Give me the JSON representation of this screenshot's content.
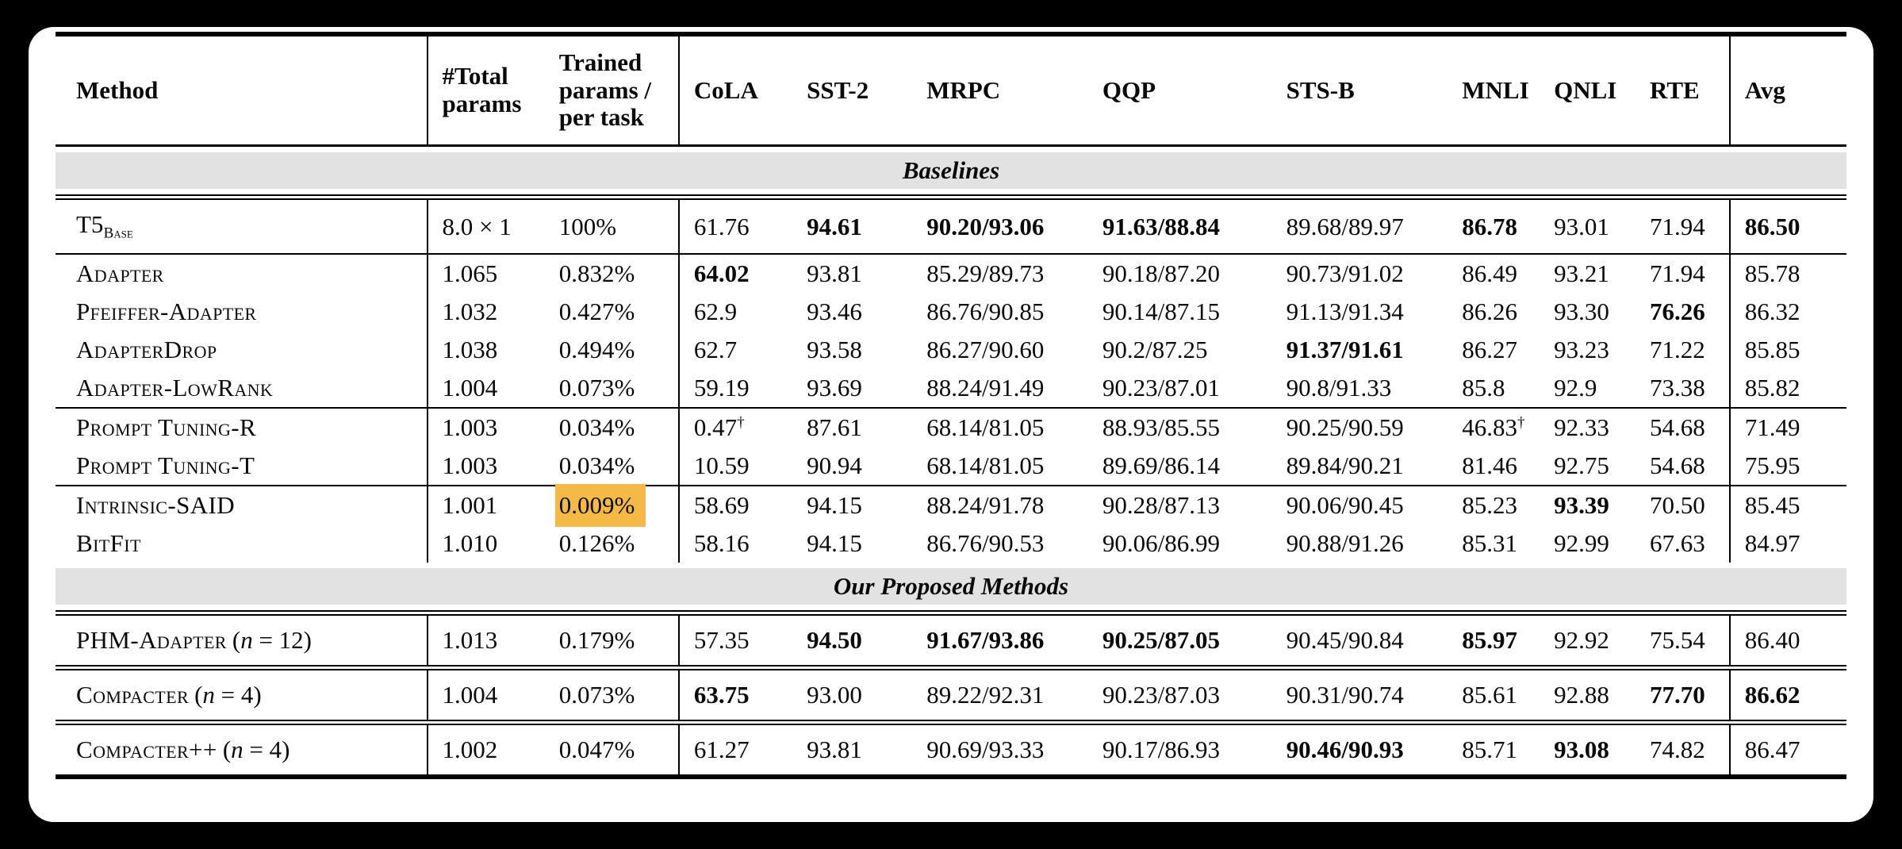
{
  "colors": {
    "highlight": "#F5BA45",
    "band_bg": "#E2E2E2",
    "text": "#0A0A0A",
    "card_bg": "#FFFFFF",
    "page_bg": "#000000"
  },
  "table": {
    "columns": [
      {
        "label": "Method"
      },
      {
        "label": "#Total\nparams"
      },
      {
        "label": "Trained\nparams /\nper task"
      },
      {
        "label": "CoLA"
      },
      {
        "label": "SST-2"
      },
      {
        "label": "MRPC"
      },
      {
        "label": "QQP"
      },
      {
        "label": "STS-B"
      },
      {
        "label": "MNLI"
      },
      {
        "label": "QNLI"
      },
      {
        "label": "RTE"
      },
      {
        "label": "Avg"
      }
    ],
    "sections": [
      {
        "band": "Baselines",
        "groups": [
          {
            "rows": [
              {
                "method": {
                  "text": "T5",
                  "sub": "Base"
                },
                "total_params": "8.0 × 1",
                "trained_params": "100%",
                "cells": [
                  {
                    "t": "61.76"
                  },
                  {
                    "t": "94.61",
                    "b": true
                  },
                  {
                    "t": "90.20/93.06",
                    "b": true
                  },
                  {
                    "t": "91.63/88.84",
                    "b": true
                  },
                  {
                    "t": "89.68/89.97"
                  },
                  {
                    "t": "86.78",
                    "b": true
                  },
                  {
                    "t": "93.01"
                  },
                  {
                    "t": "71.94"
                  },
                  {
                    "t": "86.50",
                    "b": true
                  }
                ]
              }
            ]
          },
          {
            "rows": [
              {
                "method": {
                  "text": "Adapter",
                  "sc": true
                },
                "total_params": "1.065",
                "trained_params": "0.832%",
                "cells": [
                  {
                    "t": "64.02",
                    "b": true
                  },
                  {
                    "t": "93.81"
                  },
                  {
                    "t": "85.29/89.73"
                  },
                  {
                    "t": "90.18/87.20"
                  },
                  {
                    "t": "90.73/91.02"
                  },
                  {
                    "t": "86.49"
                  },
                  {
                    "t": "93.21"
                  },
                  {
                    "t": "71.94"
                  },
                  {
                    "t": "85.78"
                  }
                ]
              },
              {
                "method": {
                  "text": "Pfeiffer-Adapter",
                  "sc": true
                },
                "total_params": "1.032",
                "trained_params": "0.427%",
                "cells": [
                  {
                    "t": "62.9"
                  },
                  {
                    "t": "93.46"
                  },
                  {
                    "t": "86.76/90.85"
                  },
                  {
                    "t": "90.14/87.15"
                  },
                  {
                    "t": "91.13/91.34"
                  },
                  {
                    "t": "86.26"
                  },
                  {
                    "t": "93.30"
                  },
                  {
                    "t": "76.26",
                    "b": true
                  },
                  {
                    "t": "86.32"
                  }
                ]
              },
              {
                "method": {
                  "text": "AdapterDrop",
                  "sc": true
                },
                "total_params": "1.038",
                "trained_params": "0.494%",
                "cells": [
                  {
                    "t": "62.7"
                  },
                  {
                    "t": "93.58"
                  },
                  {
                    "t": "86.27/90.60"
                  },
                  {
                    "t": "90.2/87.25"
                  },
                  {
                    "t": "91.37/91.61",
                    "b": true
                  },
                  {
                    "t": "86.27"
                  },
                  {
                    "t": "93.23"
                  },
                  {
                    "t": "71.22"
                  },
                  {
                    "t": "85.85"
                  }
                ]
              },
              {
                "method": {
                  "text": "Adapter-LowRank",
                  "sc": true
                },
                "total_params": "1.004",
                "trained_params": "0.073%",
                "cells": [
                  {
                    "t": "59.19"
                  },
                  {
                    "t": "93.69"
                  },
                  {
                    "t": "88.24/91.49"
                  },
                  {
                    "t": "90.23/87.01"
                  },
                  {
                    "t": "90.8/91.33"
                  },
                  {
                    "t": "85.8"
                  },
                  {
                    "t": "92.9"
                  },
                  {
                    "t": "73.38"
                  },
                  {
                    "t": "85.82"
                  }
                ]
              }
            ]
          },
          {
            "rows": [
              {
                "method": {
                  "text": "Prompt Tuning-R",
                  "sc": true
                },
                "total_params": "1.003",
                "trained_params": "0.034%",
                "cells": [
                  {
                    "t": "0.47",
                    "sup": "†"
                  },
                  {
                    "t": "87.61"
                  },
                  {
                    "t": "68.14/81.05"
                  },
                  {
                    "t": "88.93/85.55"
                  },
                  {
                    "t": "90.25/90.59"
                  },
                  {
                    "t": "46.83",
                    "sup": "†"
                  },
                  {
                    "t": "92.33"
                  },
                  {
                    "t": "54.68"
                  },
                  {
                    "t": "71.49"
                  }
                ]
              },
              {
                "method": {
                  "text": "Prompt Tuning-T",
                  "sc": true
                },
                "total_params": "1.003",
                "trained_params": "0.034%",
                "cells": [
                  {
                    "t": "10.59"
                  },
                  {
                    "t": "90.94"
                  },
                  {
                    "t": "68.14/81.05"
                  },
                  {
                    "t": "89.69/86.14"
                  },
                  {
                    "t": "89.84/90.21"
                  },
                  {
                    "t": "81.46"
                  },
                  {
                    "t": "92.75"
                  },
                  {
                    "t": "54.68"
                  },
                  {
                    "t": "75.95"
                  }
                ]
              }
            ]
          },
          {
            "rows": [
              {
                "method": {
                  "text": "Intrinsic-SAID",
                  "sc": true
                },
                "total_params": "1.001",
                "trained_params": "0.009%",
                "highlight": true,
                "cells": [
                  {
                    "t": "58.69"
                  },
                  {
                    "t": "94.15"
                  },
                  {
                    "t": "88.24/91.78"
                  },
                  {
                    "t": "90.28/87.13"
                  },
                  {
                    "t": "90.06/90.45"
                  },
                  {
                    "t": "85.23"
                  },
                  {
                    "t": "93.39",
                    "b": true
                  },
                  {
                    "t": "70.50"
                  },
                  {
                    "t": "85.45"
                  }
                ]
              },
              {
                "method": {
                  "text": "BitFit",
                  "sc": true
                },
                "total_params": "1.010",
                "trained_params": "0.126%",
                "cells": [
                  {
                    "t": "58.16"
                  },
                  {
                    "t": "94.15"
                  },
                  {
                    "t": "86.76/90.53"
                  },
                  {
                    "t": "90.06/86.99"
                  },
                  {
                    "t": "90.88/91.26"
                  },
                  {
                    "t": "85.31"
                  },
                  {
                    "t": "92.99"
                  },
                  {
                    "t": "67.63"
                  },
                  {
                    "t": "84.97"
                  }
                ]
              }
            ]
          }
        ]
      },
      {
        "band": "Our Proposed Methods",
        "groups": [
          {
            "rows": [
              {
                "method": {
                  "text": "PHM-Adapter",
                  "sc": true,
                  "suffix": "(n = 12)"
                },
                "total_params": "1.013",
                "trained_params": "0.179%",
                "cells": [
                  {
                    "t": "57.35"
                  },
                  {
                    "t": "94.50",
                    "b": true
                  },
                  {
                    "t": "91.67/93.86",
                    "b": true
                  },
                  {
                    "t": "90.25/87.05",
                    "b": true
                  },
                  {
                    "t": "90.45/90.84"
                  },
                  {
                    "t": "85.97",
                    "b": true
                  },
                  {
                    "t": "92.92"
                  },
                  {
                    "t": "75.54"
                  },
                  {
                    "t": "86.40"
                  }
                ]
              }
            ]
          },
          {
            "rows": [
              {
                "method": {
                  "text": "Compacter",
                  "sc": true,
                  "suffix": "(n = 4)"
                },
                "total_params": "1.004",
                "trained_params": "0.073%",
                "cells": [
                  {
                    "t": "63.75",
                    "b": true
                  },
                  {
                    "t": "93.00"
                  },
                  {
                    "t": "89.22/92.31"
                  },
                  {
                    "t": "90.23/87.03"
                  },
                  {
                    "t": "90.31/90.74"
                  },
                  {
                    "t": "85.61"
                  },
                  {
                    "t": "92.88"
                  },
                  {
                    "t": "77.70",
                    "b": true
                  },
                  {
                    "t": "86.62",
                    "b": true
                  }
                ]
              }
            ]
          },
          {
            "rows": [
              {
                "method": {
                  "text": "Compacter++",
                  "sc": true,
                  "suffix": "(n = 4)"
                },
                "total_params": "1.002",
                "trained_params": "0.047%",
                "cells": [
                  {
                    "t": "61.27"
                  },
                  {
                    "t": "93.81"
                  },
                  {
                    "t": "90.69/93.33"
                  },
                  {
                    "t": "90.17/86.93"
                  },
                  {
                    "t": "90.46/90.93",
                    "b": true
                  },
                  {
                    "t": "85.71"
                  },
                  {
                    "t": "93.08",
                    "b": true
                  },
                  {
                    "t": "74.82"
                  },
                  {
                    "t": "86.47"
                  }
                ]
              }
            ]
          }
        ]
      }
    ]
  }
}
